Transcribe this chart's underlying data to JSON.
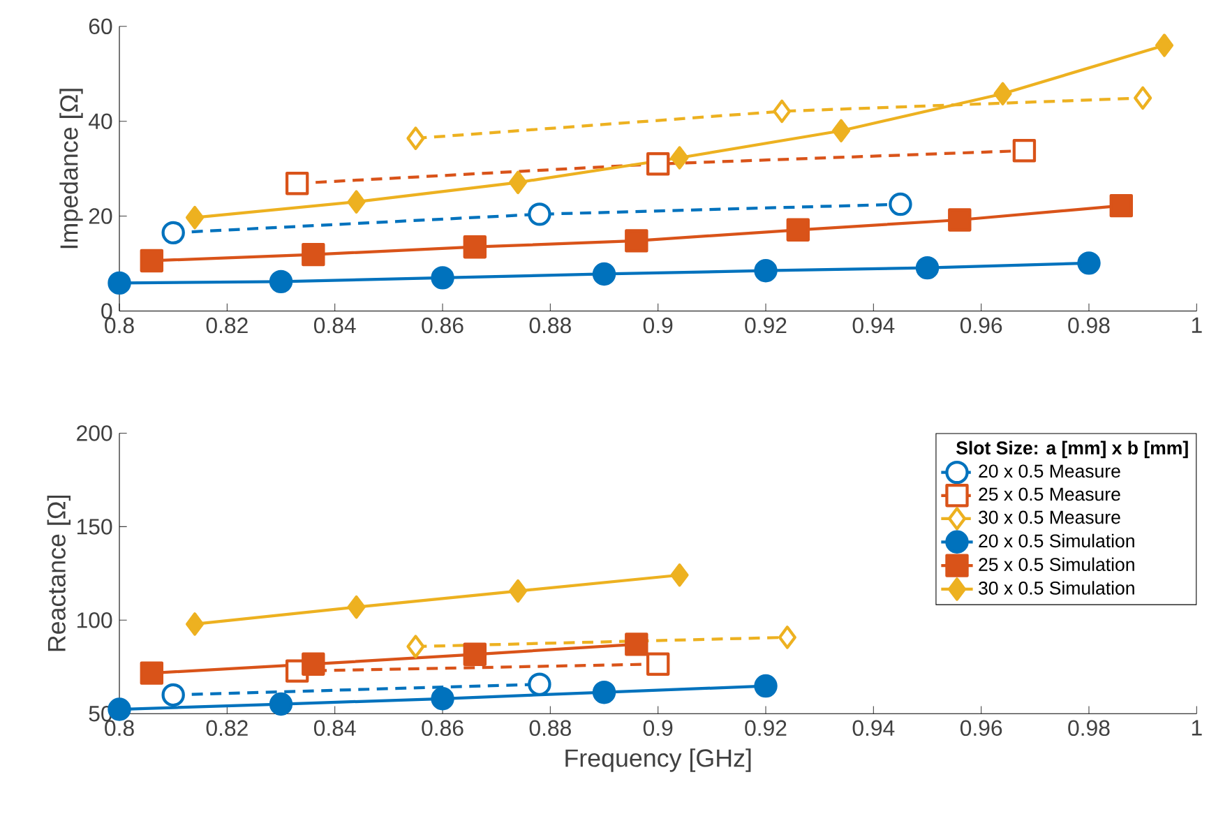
{
  "chart_data": [
    {
      "type": "line",
      "ylabel": "Impedance [Ω]",
      "xlim": [
        0.8,
        1
      ],
      "ylim": [
        0,
        60
      ],
      "xticks": [
        0.8,
        0.82,
        0.84,
        0.86,
        0.88,
        0.9,
        0.92,
        0.94,
        0.96,
        0.98,
        1
      ],
      "yticks": [
        0,
        20,
        40,
        60
      ],
      "series": [
        {
          "color": "#0072bd",
          "marker": "circle",
          "line_style": "dashed",
          "x": [
            0.81,
            0.878,
            0.945
          ],
          "values": [
            16.5,
            20.4,
            22.5
          ]
        },
        {
          "color": "#d95319",
          "marker": "square",
          "line_style": "dashed",
          "x": [
            0.833,
            0.9,
            0.968
          ],
          "values": [
            26.9,
            31.0,
            33.8
          ]
        },
        {
          "color": "#edb120",
          "marker": "diamond",
          "line_style": "dashed",
          "x": [
            0.855,
            0.923,
            0.99
          ],
          "values": [
            36.4,
            42.1,
            44.9
          ]
        },
        {
          "color": "#0072bd",
          "marker": "circle",
          "line_style": "solid",
          "x": [
            0.8,
            0.83,
            0.86,
            0.89,
            0.92,
            0.95,
            0.98
          ],
          "values": [
            5.9,
            6.2,
            7.0,
            7.8,
            8.5,
            9.1,
            10.1
          ]
        },
        {
          "color": "#d95319",
          "marker": "square",
          "line_style": "solid",
          "x": [
            0.806,
            0.836,
            0.866,
            0.896,
            0.926,
            0.956,
            0.986
          ],
          "values": [
            10.6,
            11.9,
            13.5,
            14.8,
            17.1,
            19.2,
            22.2
          ]
        },
        {
          "color": "#edb120",
          "marker": "diamond",
          "line_style": "solid",
          "x": [
            0.814,
            0.844,
            0.874,
            0.904,
            0.934,
            0.964,
            0.994
          ],
          "values": [
            19.7,
            23.0,
            27.1,
            32.3,
            38.0,
            45.8,
            56.0
          ]
        }
      ]
    },
    {
      "type": "line",
      "xlabel": "Frequency [GHz]",
      "ylabel": "Reactance [Ω]",
      "xlim": [
        0.8,
        1
      ],
      "ylim": [
        50,
        200
      ],
      "xticks": [
        0.8,
        0.82,
        0.84,
        0.86,
        0.88,
        0.9,
        0.92,
        0.94,
        0.96,
        0.98,
        1
      ],
      "yticks": [
        50,
        100,
        150,
        200
      ],
      "legend": "top right",
      "legend_title": "Slot Size: a [mm] x b [mm]",
      "series": [
        {
          "name": "20 x 0.5 Measure",
          "color": "#0072bd",
          "marker": "circle",
          "line_style": "dashed",
          "x": [
            0.81,
            0.878
          ],
          "values": [
            60.0,
            65.7
          ]
        },
        {
          "name": "25 x 0.5 Measure",
          "color": "#d95319",
          "marker": "square",
          "line_style": "dashed",
          "x": [
            0.833,
            0.9
          ],
          "values": [
            72.8,
            76.5
          ]
        },
        {
          "name": "30 x 0.5 Measure",
          "color": "#edb120",
          "marker": "diamond",
          "line_style": "dashed",
          "x": [
            0.855,
            0.924
          ],
          "values": [
            85.9,
            90.8
          ]
        },
        {
          "name": "20 x 0.5 Simulation",
          "color": "#0072bd",
          "marker": "circle",
          "line_style": "solid",
          "x": [
            0.8,
            0.83,
            0.86,
            0.89,
            0.92
          ],
          "values": [
            52.3,
            55.1,
            58.0,
            61.4,
            64.8
          ]
        },
        {
          "name": "25 x 0.5 Simulation",
          "color": "#d95319",
          "marker": "square",
          "line_style": "solid",
          "x": [
            0.806,
            0.836,
            0.866,
            0.896
          ],
          "values": [
            71.7,
            76.5,
            81.7,
            87.1
          ]
        },
        {
          "name": "30 x 0.5 Simulation",
          "color": "#edb120",
          "marker": "diamond",
          "line_style": "solid",
          "x": [
            0.814,
            0.844,
            0.874,
            0.904
          ],
          "values": [
            97.9,
            107.0,
            115.6,
            124.1
          ]
        }
      ]
    }
  ]
}
